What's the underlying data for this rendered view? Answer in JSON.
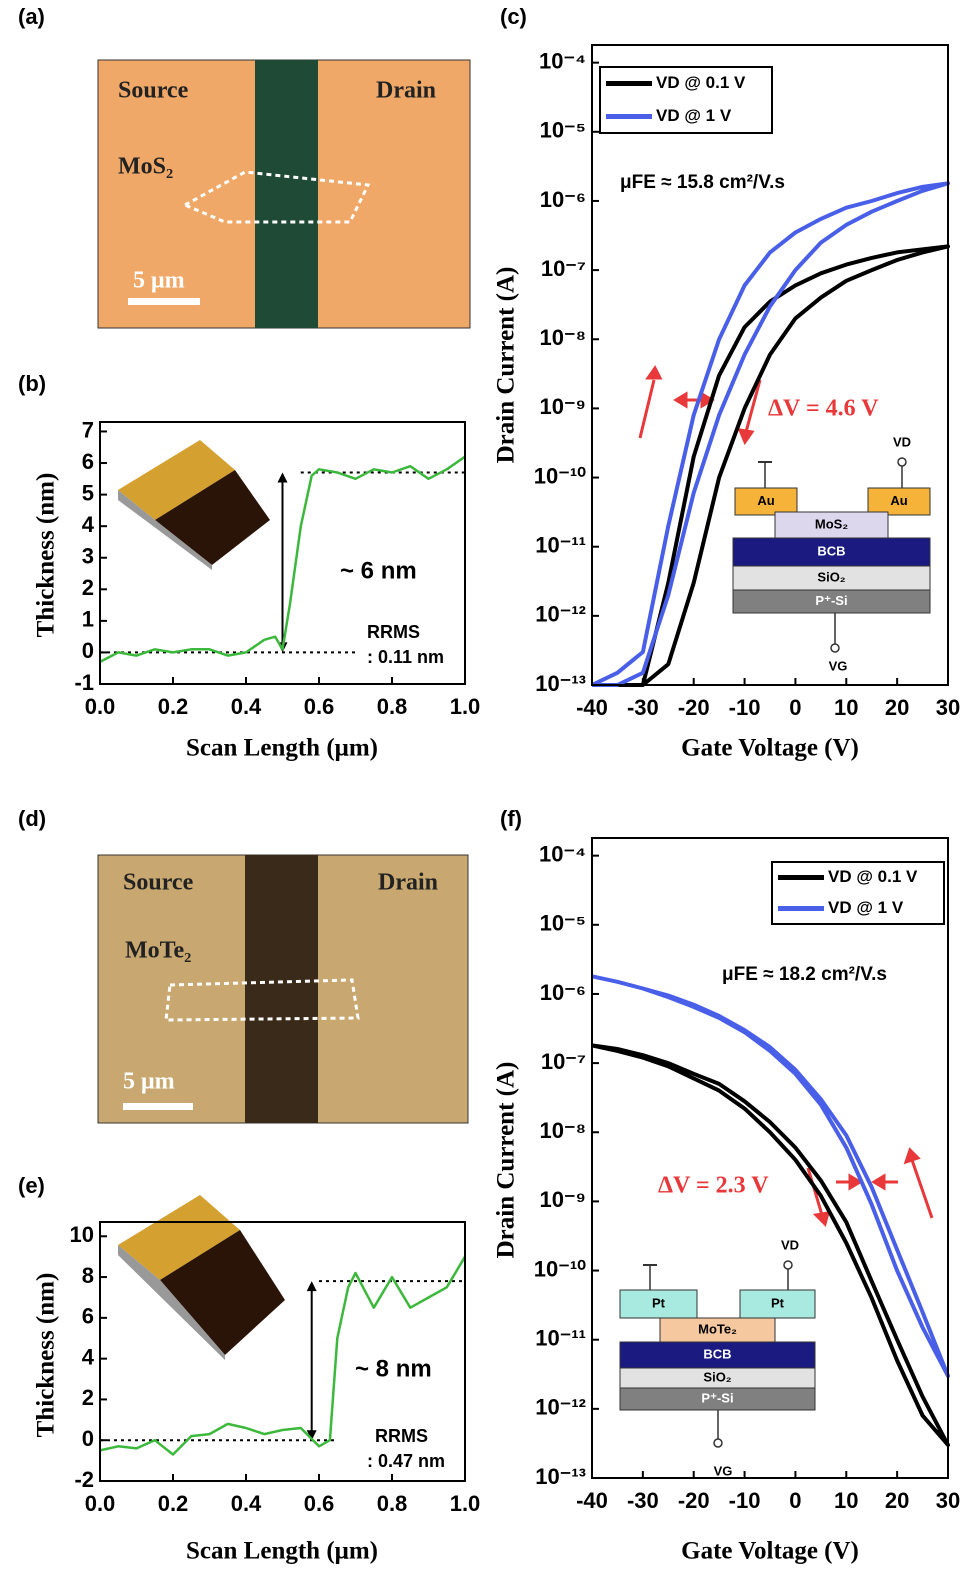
{
  "images": [
    {
      "panel": "(a)",
      "texts": [
        "Source",
        "Drain",
        "MoS₂",
        "5 μm"
      ]
    },
    {
      "panel": "(d)",
      "texts": [
        "Source",
        "Drain",
        "MoTe₂",
        "5 μm"
      ]
    }
  ],
  "chart_data": [
    {
      "panel": "(b)",
      "type": "line",
      "xlabel": "Scan Length (μm)",
      "ylabel": "Thickness (nm)",
      "x": [
        0,
        0.05,
        0.1,
        0.15,
        0.2,
        0.25,
        0.3,
        0.35,
        0.4,
        0.45,
        0.48,
        0.5,
        0.52,
        0.55,
        0.58,
        0.6,
        0.65,
        0.7,
        0.75,
        0.8,
        0.85,
        0.9,
        0.95,
        1.0
      ],
      "series": [
        {
          "color": "#3cb83c",
          "values": [
            -0.3,
            0,
            -0.1,
            0.1,
            0,
            0.1,
            0.1,
            -0.1,
            0,
            0.4,
            0.5,
            0.1,
            1.5,
            4.0,
            5.6,
            5.8,
            5.7,
            5.5,
            5.8,
            5.7,
            5.9,
            5.5,
            5.8,
            6.2
          ]
        }
      ],
      "xlim": [
        0,
        1
      ],
      "xticks": [
        {
          "value": 0,
          "label": "0.0"
        },
        {
          "value": 0.2,
          "label": "0.2"
        },
        {
          "value": 0.4,
          "label": "0.4"
        },
        {
          "value": 0.6,
          "label": "0.6"
        },
        {
          "value": 0.8,
          "label": "0.8"
        },
        {
          "value": 1,
          "label": "1.0"
        }
      ],
      "ylim": [
        -1,
        7.3
      ],
      "yticks": [
        -1,
        0,
        1,
        2,
        3,
        4,
        5,
        6,
        7
      ],
      "reference_lines": [
        0,
        5.7
      ],
      "annotations": [
        "~ 6 nm",
        "RRMS",
        ": 0.11 nm"
      ]
    },
    {
      "panel": "(c)",
      "type": "line",
      "log_y": true,
      "xlabel": "Gate Voltage (V)",
      "ylabel": "Drain Current (A)",
      "x": [
        -40,
        -35,
        -30,
        -25,
        -20,
        -15,
        -10,
        -5,
        0,
        5,
        10,
        15,
        20,
        25,
        30,
        25,
        20,
        15,
        10,
        5,
        0,
        -5,
        -10,
        -15,
        -20,
        -25,
        -30,
        -35,
        -40
      ],
      "series": [
        {
          "name": "VD @ 0.1 V",
          "color": "#000000",
          "values": [
            1e-13,
            1e-13,
            1e-13,
            3e-12,
            2e-10,
            3e-09,
            1.5e-08,
            3.5e-08,
            6e-08,
            9e-08,
            1.2e-07,
            1.5e-07,
            1.8e-07,
            2e-07,
            2.2e-07,
            1.8e-07,
            1.4e-07,
            1e-07,
            7e-08,
            4e-08,
            2e-08,
            6e-09,
            1e-09,
            1e-10,
            3e-12,
            2e-13,
            1e-13,
            1e-13,
            1e-13
          ]
        },
        {
          "name": "VD @ 1 V",
          "color": "#4a5fe8",
          "values": [
            1e-13,
            1.5e-13,
            3e-13,
            2e-11,
            8e-10,
            1e-08,
            6e-08,
            1.8e-07,
            3.5e-07,
            5.5e-07,
            8e-07,
            1e-06,
            1.3e-06,
            1.6e-06,
            1.8e-06,
            1.4e-06,
            1e-06,
            7e-07,
            4.5e-07,
            2.5e-07,
            1e-07,
            3e-08,
            6e-09,
            8e-10,
            6e-11,
            2e-12,
            1.5e-13,
            1e-13,
            1e-13
          ]
        }
      ],
      "xlim": [
        -40,
        30
      ],
      "xticks": [
        -40,
        -30,
        -20,
        -10,
        0,
        10,
        20,
        30
      ],
      "ylim": [
        1e-13,
        0.00018
      ],
      "yticks": [
        {
          "value": 1e-13,
          "label": "10⁻¹³"
        },
        {
          "value": 1e-12,
          "label": "10⁻¹²"
        },
        {
          "value": 1e-11,
          "label": "10⁻¹¹"
        },
        {
          "value": 1e-10,
          "label": "10⁻¹⁰"
        },
        {
          "value": 1e-09,
          "label": "10⁻⁹"
        },
        {
          "value": 1e-08,
          "label": "10⁻⁸"
        },
        {
          "value": 1e-07,
          "label": "10⁻⁷"
        },
        {
          "value": 1e-06,
          "label": "10⁻⁶"
        },
        {
          "value": 1e-05,
          "label": "10⁻⁵"
        },
        {
          "value": 0.0001,
          "label": "10⁻⁴"
        }
      ],
      "legend": "upper left",
      "annotations": [
        "μFE ≈ 15.8 cm²/V.s",
        "ΔV = 4.6 V"
      ],
      "inset": {
        "layers": [
          "Au",
          "Au",
          "MoS₂",
          "BCB",
          "SiO₂",
          "P⁺-Si"
        ],
        "terminals": [
          "VD",
          "VG"
        ]
      }
    },
    {
      "panel": "(e)",
      "type": "line",
      "xlabel": "Scan Length (μm)",
      "ylabel": "Thickness (nm)",
      "x": [
        0,
        0.05,
        0.1,
        0.15,
        0.2,
        0.25,
        0.3,
        0.35,
        0.4,
        0.45,
        0.5,
        0.55,
        0.6,
        0.63,
        0.65,
        0.68,
        0.7,
        0.75,
        0.8,
        0.85,
        0.9,
        0.95,
        1.0
      ],
      "series": [
        {
          "color": "#3cb83c",
          "values": [
            -0.5,
            -0.3,
            -0.4,
            0,
            -0.7,
            0.2,
            0.3,
            0.8,
            0.6,
            0.3,
            0.5,
            0.6,
            -0.3,
            0,
            5,
            7.5,
            8.2,
            6.5,
            8,
            6.5,
            7,
            7.5,
            9
          ]
        }
      ],
      "xlim": [
        0,
        1
      ],
      "xticks": [
        {
          "value": 0,
          "label": "0.0"
        },
        {
          "value": 0.2,
          "label": "0.2"
        },
        {
          "value": 0.4,
          "label": "0.4"
        },
        {
          "value": 0.6,
          "label": "0.6"
        },
        {
          "value": 0.8,
          "label": "0.8"
        },
        {
          "value": 1,
          "label": "1.0"
        }
      ],
      "ylim": [
        -2,
        10.7
      ],
      "yticks": [
        -2,
        0,
        2,
        4,
        6,
        8,
        10
      ],
      "reference_lines": [
        0,
        7.8
      ],
      "annotations": [
        "~ 8 nm",
        "RRMS",
        ": 0.47 nm"
      ]
    },
    {
      "panel": "(f)",
      "type": "line",
      "log_y": true,
      "xlabel": "Gate Voltage (V)",
      "ylabel": "Drain Current (A)",
      "x": [
        -40,
        -35,
        -30,
        -25,
        -20,
        -15,
        -10,
        -5,
        0,
        5,
        10,
        15,
        20,
        25,
        30,
        25,
        20,
        15,
        10,
        5,
        0,
        -5,
        -10,
        -15,
        -20,
        -25,
        -30,
        -35,
        -40
      ],
      "series": [
        {
          "name": "VD @ 0.1 V",
          "color": "#000000",
          "values": [
            1.8e-07,
            1.5e-07,
            1.2e-07,
            9e-08,
            6e-08,
            4e-08,
            2.2e-08,
            1e-08,
            4e-09,
            1.2e-09,
            2.5e-10,
            4e-11,
            5e-12,
            8e-13,
            3e-13,
            1.5e-12,
            1e-11,
            7e-11,
            5e-10,
            2e-09,
            6e-09,
            1.4e-08,
            2.8e-08,
            5e-08,
            7e-08,
            1e-07,
            1.3e-07,
            1.6e-07,
            1.8e-07
          ]
        },
        {
          "name": "VD @ 1 V",
          "color": "#4a5fe8",
          "values": [
            1.8e-06,
            1.5e-06,
            1.2e-06,
            9e-07,
            6.5e-07,
            4.5e-07,
            2.8e-07,
            1.5e-07,
            7e-08,
            2.5e-08,
            6e-09,
            9e-10,
            1e-10,
            1.5e-11,
            3e-12,
            2.5e-11,
            2e-10,
            1.6e-09,
            9e-09,
            3e-08,
            8e-08,
            1.7e-07,
            3e-07,
            4.8e-07,
            7e-07,
            9.5e-07,
            1.2e-06,
            1.5e-06,
            1.8e-06
          ]
        }
      ],
      "xlim": [
        -40,
        30
      ],
      "xticks": [
        -40,
        -30,
        -20,
        -10,
        0,
        10,
        20,
        30
      ],
      "ylim": [
        1e-13,
        0.00018
      ],
      "yticks": [
        {
          "value": 1e-13,
          "label": "10⁻¹³"
        },
        {
          "value": 1e-12,
          "label": "10⁻¹²"
        },
        {
          "value": 1e-11,
          "label": "10⁻¹¹"
        },
        {
          "value": 1e-10,
          "label": "10⁻¹⁰"
        },
        {
          "value": 1e-09,
          "label": "10⁻⁹"
        },
        {
          "value": 1e-08,
          "label": "10⁻⁸"
        },
        {
          "value": 1e-07,
          "label": "10⁻⁷"
        },
        {
          "value": 1e-06,
          "label": "10⁻⁶"
        },
        {
          "value": 1e-05,
          "label": "10⁻⁵"
        },
        {
          "value": 0.0001,
          "label": "10⁻⁴"
        }
      ],
      "legend": "upper right",
      "annotations": [
        "μFE ≈ 18.2 cm²/V.s",
        "ΔV = 2.3 V"
      ],
      "inset": {
        "layers": [
          "Pt",
          "Pt",
          "MoTe₂",
          "BCB",
          "SiO₂",
          "P⁺-Si"
        ],
        "terminals": [
          "VD",
          "VG"
        ]
      }
    }
  ]
}
